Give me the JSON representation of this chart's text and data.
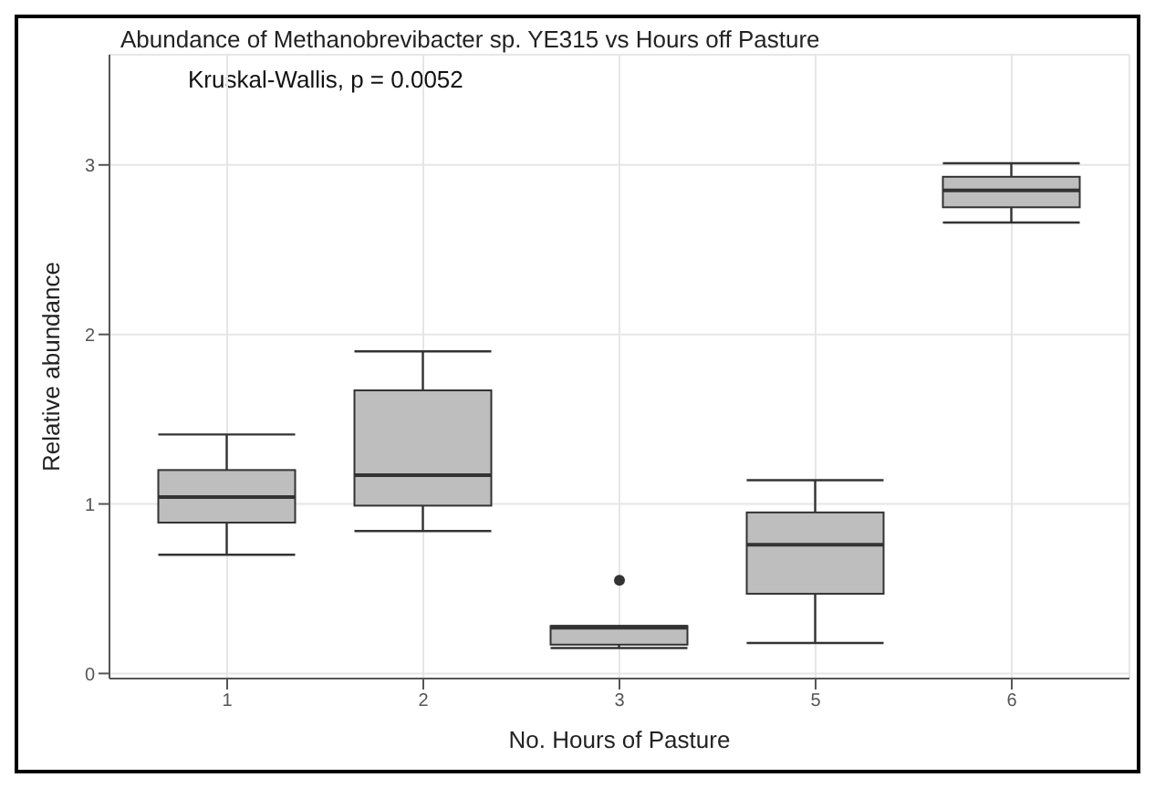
{
  "chart_data": {
    "type": "box",
    "title": "Abundance of Methanobrevibacter sp. YE315 vs Hours off Pasture",
    "xlabel": "No. Hours of Pasture",
    "ylabel": "Relative abundance",
    "annotations": [
      "Kruskal-Wallis, p = 0.0052"
    ],
    "categories": [
      "1",
      "2",
      "3",
      "5",
      "6"
    ],
    "color": "#bebebe",
    "ylim": [
      -0.03,
      3.65
    ],
    "yticks": [
      0,
      1,
      2,
      3
    ],
    "grid": true,
    "boxes": [
      {
        "low": 0.7,
        "q1": 0.89,
        "median": 1.04,
        "q3": 1.2,
        "high": 1.41
      },
      {
        "low": 0.84,
        "q1": 0.99,
        "median": 1.17,
        "q3": 1.67,
        "high": 1.9
      },
      {
        "low": 0.15,
        "q1": 0.17,
        "median": 0.27,
        "q3": 0.28,
        "high": 0.28,
        "outliers": [
          0.55
        ]
      },
      {
        "low": 0.18,
        "q1": 0.47,
        "median": 0.76,
        "q3": 0.95,
        "high": 1.14
      },
      {
        "low": 2.66,
        "q1": 2.75,
        "median": 2.85,
        "q3": 2.93,
        "high": 3.01
      }
    ]
  }
}
